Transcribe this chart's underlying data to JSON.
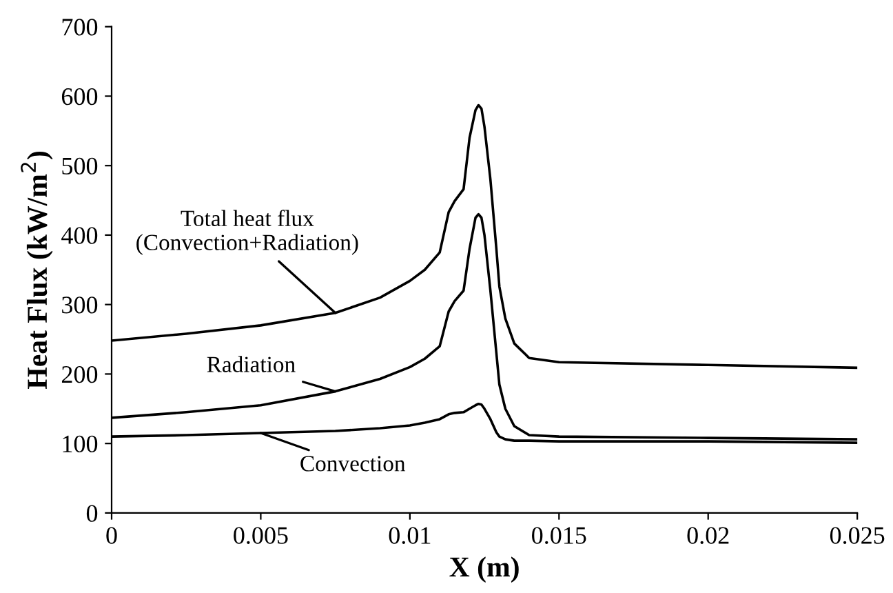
{
  "chart_data": {
    "type": "line",
    "xlabel": "X (m)",
    "ylabel": "Heat Flux (kW/m$^{2}$)",
    "x": [
      0,
      0.0025,
      0.005,
      0.0075,
      0.009,
      0.01,
      0.0105,
      0.011,
      0.0113,
      0.0115,
      0.0118,
      0.012,
      0.0122,
      0.0123,
      0.0124,
      0.0125,
      0.0127,
      0.0129,
      0.013,
      0.0132,
      0.0135,
      0.014,
      0.015,
      0.02,
      0.025
    ],
    "series": [
      {
        "name": "Total heat flux\n(Convection+Radiation)",
        "color": "#000000",
        "values": [
          248,
          258,
          270,
          288,
          310,
          334,
          350,
          375,
          433,
          449,
          466,
          540,
          580,
          587,
          582,
          556,
          480,
          380,
          326,
          280,
          244,
          223,
          217,
          213,
          209
        ]
      },
      {
        "name": "Radiation",
        "color": "#000000",
        "values": [
          137,
          145,
          155,
          175,
          193,
          210,
          222,
          240,
          290,
          305,
          320,
          380,
          425,
          430,
          425,
          400,
          320,
          230,
          185,
          150,
          125,
          112,
          110,
          108,
          106
        ]
      },
      {
        "name": "Convection",
        "color": "#000000",
        "values": [
          110,
          112,
          115,
          118,
          122,
          126,
          130,
          135,
          142,
          144,
          145,
          150,
          155,
          157,
          156,
          150,
          135,
          116,
          110,
          106,
          104,
          104,
          103,
          103,
          101
        ]
      }
    ],
    "xlim": [
      0,
      0.025
    ],
    "xticks": [
      0,
      0.005,
      0.01,
      0.015,
      0.02,
      0.025
    ],
    "ylim": [
      0,
      700
    ],
    "yticks": [
      0,
      100,
      200,
      300,
      400,
      500,
      600,
      700
    ],
    "grid": false,
    "marker": "none",
    "line_style": "solid"
  }
}
